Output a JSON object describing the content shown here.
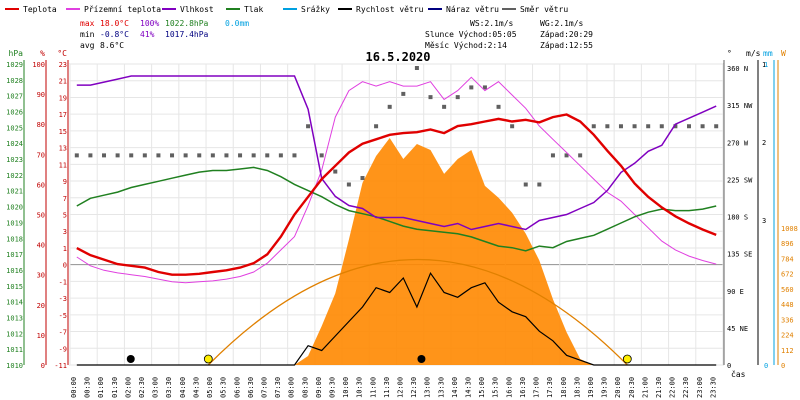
{
  "legend": [
    {
      "label": "Teplota",
      "color": "#e00000"
    },
    {
      "label": "Přízemní teplota",
      "color": "#e040e0"
    },
    {
      "label": "Vlhkost",
      "color": "#8000c0"
    },
    {
      "label": "Tlak",
      "color": "#208020"
    },
    {
      "label": "Srážky",
      "color": "#00a0e0"
    },
    {
      "label": "Rychlost větru",
      "color": "#000000"
    },
    {
      "label": "Náraz větru",
      "color": "#000080"
    },
    {
      "label": "Směr větru",
      "color": "#606060"
    }
  ],
  "stats": {
    "max_label": "max",
    "max_temp": "18.0°C",
    "max_hum": "100%",
    "max_press": "1022.8hPa",
    "max_rain": "0.0mm",
    "min_label": "min",
    "min_temp": "-0.8°C",
    "min_hum": "41%",
    "min_press": "1017.4hPa",
    "avg_label": "avg",
    "avg_temp": "8.6°C"
  },
  "info": {
    "ws": "WS:2.1m/s",
    "wg": "WG:2.1m/s",
    "sun": "Slunce Východ:05:05",
    "sun_set": "Západ:20:29",
    "moon": "Měsíc  Východ:2:14",
    "moon_set": "Západ:12:55"
  },
  "chart_data": {
    "type": "line",
    "title": "16.5.2020",
    "xlabel": "čas",
    "x": [
      "00:00",
      "00:30",
      "01:00",
      "01:30",
      "02:00",
      "02:30",
      "03:00",
      "03:30",
      "04:00",
      "04:30",
      "05:00",
      "05:30",
      "06:00",
      "06:30",
      "07:00",
      "07:30",
      "08:00",
      "08:30",
      "09:00",
      "09:30",
      "10:00",
      "10:30",
      "11:00",
      "11:30",
      "12:00",
      "12:30",
      "13:00",
      "13:30",
      "14:00",
      "14:30",
      "15:00",
      "15:30",
      "16:00",
      "16:30",
      "17:00",
      "17:30",
      "18:00",
      "18:30",
      "19:00",
      "19:30",
      "20:00",
      "20:30",
      "21:00",
      "21:30",
      "22:00",
      "22:30",
      "23:00",
      "23:30"
    ],
    "axes": {
      "hpa": {
        "label": "hPa",
        "ticks": [
          "1029",
          "1028",
          "1027",
          "1026",
          "1025",
          "1024",
          "1023",
          "1022",
          "1021",
          "1020",
          "1019",
          "1018",
          "1017",
          "1016",
          "1015",
          "1014",
          "1013",
          "1012",
          "1011",
          "1010"
        ],
        "range": [
          1010,
          1029.5
        ]
      },
      "percent": {
        "label": "%",
        "ticks": [
          "100",
          "90",
          "80",
          "70",
          "60",
          "50",
          "40",
          "30",
          "20",
          "10",
          "0"
        ],
        "range": [
          0,
          100
        ]
      },
      "celsius": {
        "label": "°C",
        "ticks": [
          "23",
          "21",
          "19",
          "17",
          "15",
          "13",
          "11",
          "9",
          "7",
          "5",
          "3",
          "1",
          "0",
          "-1",
          "-3",
          "-5",
          "-7",
          "-9",
          "-11"
        ],
        "range": [
          -11,
          23
        ]
      },
      "direction": {
        "label": "°",
        "ticks": [
          "360 N",
          "315 NW",
          "270 W",
          "225 SW",
          "180 S",
          "135 SE",
          "90 E",
          "45 NE",
          "0"
        ]
      },
      "wind": {
        "label": "m/s",
        "ticks": [
          "3",
          "2",
          "1"
        ]
      },
      "rain": {
        "label": "mm",
        "ticks": [
          "1",
          "0"
        ]
      },
      "solar": {
        "label": "W",
        "ticks": [
          "1008",
          "896",
          "784",
          "672",
          "560",
          "448",
          "336",
          "224",
          "112",
          "0"
        ],
        "range": [
          0,
          1008
        ]
      }
    },
    "series": [
      {
        "name": "Teplota",
        "axis": "celsius",
        "values": [
          2.2,
          1.4,
          0.9,
          0.4,
          0.2,
          0.0,
          -0.5,
          -0.8,
          -0.8,
          -0.7,
          -0.5,
          -0.3,
          0.0,
          0.5,
          1.5,
          3.5,
          6.0,
          8.0,
          10.0,
          11.5,
          13.0,
          14.0,
          14.5,
          15.0,
          15.2,
          15.3,
          15.6,
          15.2,
          16.0,
          16.2,
          16.5,
          16.8,
          16.5,
          16.7,
          16.4,
          17.0,
          17.3,
          16.5,
          15.0,
          13.2,
          11.5,
          9.5,
          8.0,
          6.8,
          5.8,
          5.0,
          4.3,
          3.7
        ]
      },
      {
        "name": "Přízemní teplota",
        "axis": "celsius",
        "values": [
          1.2,
          0.2,
          -0.3,
          -0.6,
          -0.8,
          -1.0,
          -1.3,
          -1.6,
          -1.7,
          -1.6,
          -1.5,
          -1.3,
          -1.0,
          -0.5,
          0.5,
          2.0,
          3.5,
          7.0,
          11.0,
          17.0,
          20.0,
          21.0,
          20.5,
          21.0,
          20.5,
          20.5,
          21.0,
          19.0,
          20.0,
          21.5,
          20.0,
          21.0,
          19.5,
          18.0,
          16.0,
          14.5,
          13.0,
          11.5,
          10.0,
          8.5,
          7.5,
          6.0,
          4.5,
          3.0,
          2.0,
          1.3,
          0.8,
          0.4
        ]
      },
      {
        "name": "Vlhkost",
        "axis": "percent",
        "values": [
          93,
          93,
          94,
          95,
          96,
          96,
          96,
          96,
          96,
          96,
          96,
          96,
          96,
          96,
          96,
          96,
          96,
          85,
          62,
          56,
          53,
          52,
          49,
          49,
          49,
          48,
          47,
          46,
          47,
          45,
          46,
          47,
          46,
          45,
          48,
          49,
          50,
          52,
          54,
          58,
          64,
          67,
          71,
          73,
          80,
          82,
          84,
          86
        ]
      },
      {
        "name": "Tlak",
        "axis": "hpa",
        "values": [
          1020.3,
          1020.8,
          1021.0,
          1021.2,
          1021.5,
          1021.7,
          1021.9,
          1022.1,
          1022.3,
          1022.5,
          1022.6,
          1022.6,
          1022.7,
          1022.8,
          1022.6,
          1022.2,
          1021.7,
          1021.3,
          1020.9,
          1020.4,
          1020.0,
          1019.8,
          1019.6,
          1019.3,
          1019.0,
          1018.8,
          1018.7,
          1018.6,
          1018.5,
          1018.3,
          1018.0,
          1017.7,
          1017.6,
          1017.4,
          1017.7,
          1017.6,
          1018.0,
          1018.2,
          1018.4,
          1018.8,
          1019.2,
          1019.6,
          1019.9,
          1020.1,
          1020.0,
          1020.0,
          1020.1,
          1020.3
        ]
      },
      {
        "name": "Rychlost větru",
        "axis": "wind",
        "values": [
          0,
          0,
          0,
          0,
          0,
          0,
          0,
          0,
          0,
          0,
          0,
          0,
          0,
          0,
          0,
          0,
          0,
          0.4,
          0.3,
          0.6,
          0.9,
          1.2,
          1.6,
          1.5,
          1.8,
          1.2,
          1.9,
          1.5,
          1.4,
          1.6,
          1.7,
          1.3,
          1.1,
          1.0,
          0.7,
          0.5,
          0.2,
          0.1,
          0,
          0,
          0,
          0,
          0,
          0,
          0,
          0,
          0,
          0
        ]
      },
      {
        "name": "Sluneční záření",
        "axis": "solar",
        "values": [
          0,
          0,
          0,
          0,
          0,
          0,
          0,
          0,
          0,
          0,
          0,
          0,
          0,
          0,
          0,
          0,
          0,
          30,
          130,
          240,
          420,
          610,
          700,
          760,
          690,
          740,
          720,
          640,
          690,
          720,
          600,
          560,
          510,
          440,
          350,
          220,
          110,
          20,
          0,
          0,
          0,
          0,
          0,
          0,
          0,
          0,
          0,
          0
        ]
      },
      {
        "name": "Směr větru",
        "axis": "direction",
        "values": [
          225,
          225,
          225,
          225,
          225,
          225,
          225,
          225,
          225,
          225,
          225,
          225,
          225,
          225,
          225,
          225,
          225,
          270,
          225,
          200,
          180,
          190,
          270,
          300,
          320,
          360,
          315,
          300,
          315,
          330,
          330,
          300,
          270,
          180,
          180,
          225,
          225,
          225,
          270,
          270,
          270,
          270,
          270,
          270,
          270,
          270,
          270,
          270
        ]
      }
    ],
    "grid": true
  }
}
